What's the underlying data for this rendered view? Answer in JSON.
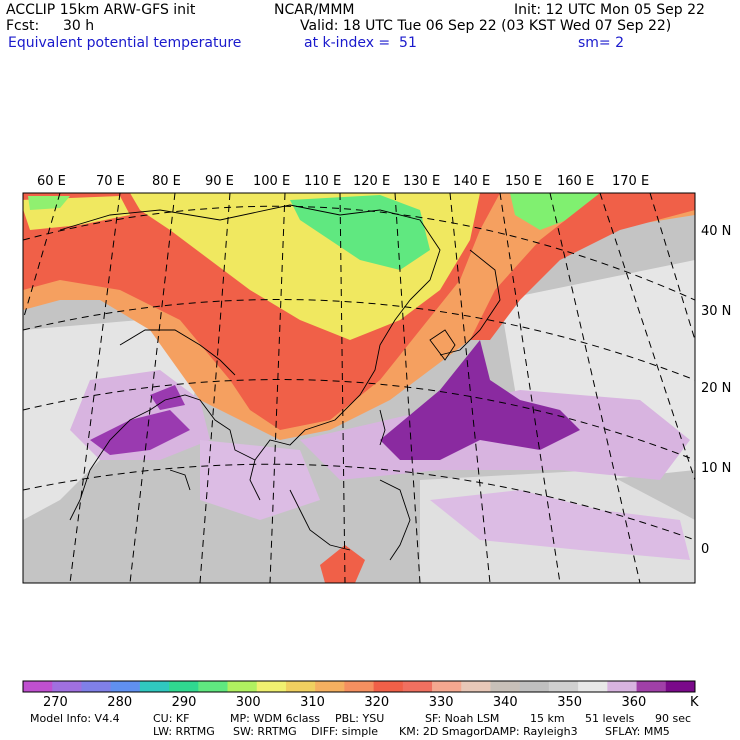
{
  "header": {
    "model": "ACCLIP 15km ARW-GFS init",
    "fcst_label": "Fcst:",
    "fcst_value": "30 h",
    "org": "NCAR/MMM",
    "init": "Init: 12 UTC Mon 05 Sep 22",
    "valid": "Valid: 18 UTC Tue 06 Sep 22 (03 KST Wed 07 Sep 22)",
    "field": "Equivalent potential temperature",
    "level": "at k-index =  51",
    "smooth": "sm= 2"
  },
  "map": {
    "lon_labels": [
      "60 E",
      "70 E",
      "80 E",
      "90 E",
      "100 E",
      "110 E",
      "120 E",
      "130 E",
      "140 E",
      "150 E",
      "160 E",
      "170 E"
    ],
    "lat_labels": [
      "40 N",
      "30 N",
      "20 N",
      "10 N",
      "0"
    ],
    "colors": {
      "purple_dark": "#8a2aa0",
      "purple_light": "#d8b4e0",
      "gray_light": "#e8e8e8",
      "gray_mid": "#bfbfbf",
      "red": "#f05040",
      "orange": "#f59060",
      "yellow": "#f2f060",
      "green": "#60e880"
    }
  },
  "colorbar": {
    "colors": [
      "#c050d0",
      "#a070e0",
      "#8080e8",
      "#6090f0",
      "#30c8c0",
      "#30d890",
      "#60e880",
      "#b0f060",
      "#f0f070",
      "#f0d060",
      "#f5b060",
      "#f59060",
      "#f06048",
      "#f07060",
      "#f5a890",
      "#e8c8b8",
      "#c8c0b8",
      "#c0c0c0",
      "#d0d0d0",
      "#e8e8e8",
      "#d8b4e0",
      "#a040a8",
      "#7a0a8a"
    ],
    "labels": [
      "270",
      "280",
      "290",
      "300",
      "310",
      "320",
      "330",
      "340",
      "350",
      "360"
    ],
    "unit": "K"
  },
  "footer": {
    "line1": [
      "Model Info: V4.4",
      "CU: KF",
      "MP: WDM 6class",
      "PBL: YSU",
      "SF: Noah LSM",
      "15 km",
      "51 levels",
      "90 sec"
    ],
    "line2": [
      "LW: RRTMG",
      "SW: RRTMG",
      "DIFF: simple",
      "KM: 2D Smagor",
      "DAMP: Rayleigh3",
      "SFLAY: MM5"
    ]
  }
}
